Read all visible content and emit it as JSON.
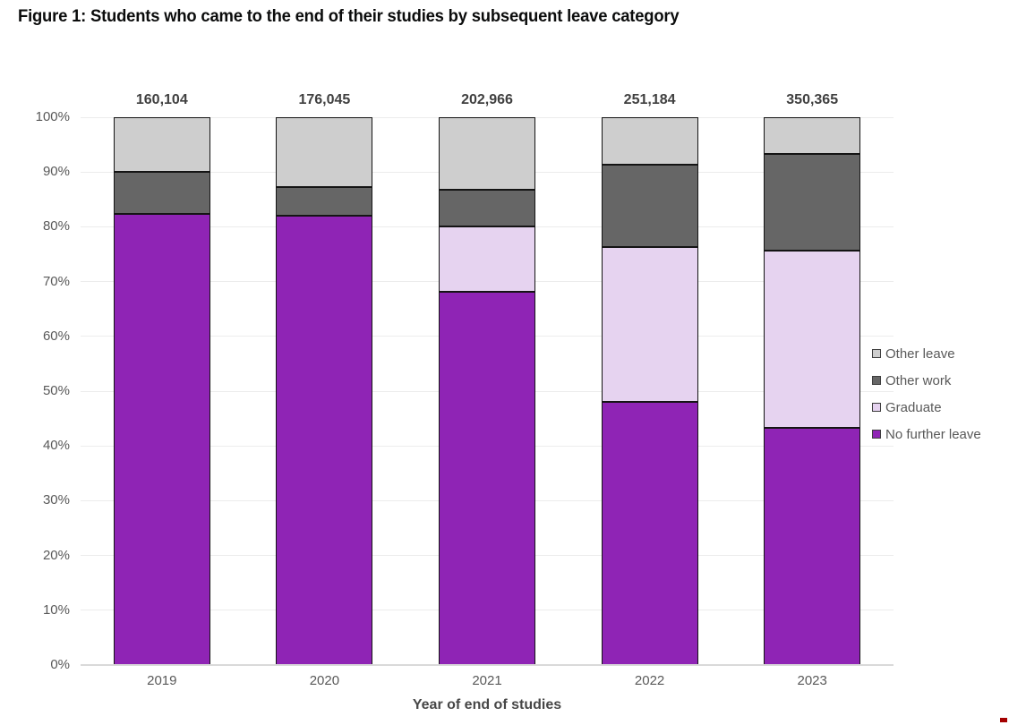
{
  "title": "Figure 1: Students who came to the end of their studies by subsequent leave category",
  "chart_data": {
    "type": "bar",
    "variant": "stacked-100-percent",
    "title": "Figure 1: Students who came to the end of their studies by subsequent leave category",
    "xlabel": "Year of end of studies",
    "ylabel": "",
    "categories": [
      "2019",
      "2020",
      "2021",
      "2022",
      "2023"
    ],
    "bar_totals": [
      "160,104",
      "176,045",
      "202,966",
      "251,184",
      "350,365"
    ],
    "y_ticks": [
      "0%",
      "10%",
      "20%",
      "30%",
      "40%",
      "50%",
      "60%",
      "70%",
      "80%",
      "90%",
      "100%"
    ],
    "ylim": [
      0,
      100
    ],
    "grid": "horizontal",
    "legend_position": "right",
    "series": [
      {
        "name": "No further leave",
        "color": "#8f24b5",
        "values": [
          82.4,
          82.0,
          68.1,
          48.0,
          43.3
        ]
      },
      {
        "name": "Graduate",
        "color": "#e6d3f0",
        "values": [
          0,
          0,
          12.0,
          28.3,
          32.4
        ]
      },
      {
        "name": "Other work",
        "color": "#666666",
        "values": [
          7.7,
          5.3,
          6.7,
          15.0,
          17.6
        ]
      },
      {
        "name": "Other leave",
        "color": "#cecece",
        "values": [
          9.9,
          12.7,
          13.2,
          8.7,
          6.7
        ]
      }
    ],
    "legend_order_top_to_bottom": [
      "Other leave",
      "Other work",
      "Graduate",
      "No further leave"
    ],
    "colors": {
      "title_text": "#0b0c0c",
      "tick_text": "#595959",
      "total_label_text": "#404040",
      "axis_title_text": "#474747",
      "gridline": "#ececec",
      "baseline": "#d9d9d9",
      "bar_outline": "#141414",
      "legend_text": "#595959",
      "corner_mark": "#a40000"
    }
  }
}
